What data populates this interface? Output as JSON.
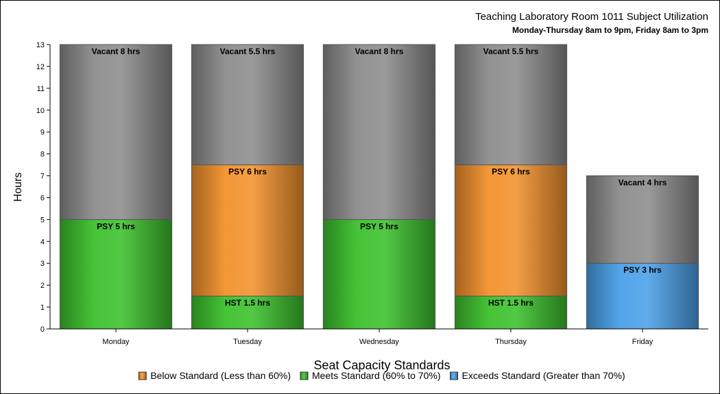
{
  "chart_data": {
    "type": "bar",
    "stacked": true,
    "title": "Teaching Laboratory Room 1011 Subject Utilization",
    "subtitle": "Monday-Thursday 8am to 9pm, Friday 8am to 3pm",
    "ylabel": "Hours",
    "xlabel": "",
    "ylim": [
      0,
      13
    ],
    "yticks": [
      0,
      1,
      2,
      3,
      4,
      5,
      6,
      7,
      8,
      9,
      10,
      11,
      12,
      13
    ],
    "categories": [
      "Monday",
      "Tuesday",
      "Wednesday",
      "Thursday",
      "Friday"
    ],
    "status_colors": {
      "below": "#f2912c",
      "meets": "#3cc02c",
      "exceeds": "#4aa0e8",
      "vacant": "#8c8c8c"
    },
    "bars": [
      {
        "category": "Monday",
        "segments": [
          {
            "label": "PSY 5 hrs",
            "value": 5,
            "status": "meets"
          },
          {
            "label": "Vacant 8 hrs",
            "value": 8,
            "status": "vacant"
          }
        ]
      },
      {
        "category": "Tuesday",
        "segments": [
          {
            "label": "HST 1.5 hrs",
            "value": 1.5,
            "status": "meets"
          },
          {
            "label": "PSY 6 hrs",
            "value": 6,
            "status": "below"
          },
          {
            "label": "Vacant 5.5 hrs",
            "value": 5.5,
            "status": "vacant"
          }
        ]
      },
      {
        "category": "Wednesday",
        "segments": [
          {
            "label": "PSY 5 hrs",
            "value": 5,
            "status": "meets"
          },
          {
            "label": "Vacant 8 hrs",
            "value": 8,
            "status": "vacant"
          }
        ]
      },
      {
        "category": "Thursday",
        "segments": [
          {
            "label": "HST 1.5 hrs",
            "value": 1.5,
            "status": "meets"
          },
          {
            "label": "PSY 6 hrs",
            "value": 6,
            "status": "below"
          },
          {
            "label": "Vacant 5.5 hrs",
            "value": 5.5,
            "status": "vacant"
          }
        ]
      },
      {
        "category": "Friday",
        "segments": [
          {
            "label": "PSY 3 hrs",
            "value": 3,
            "status": "exceeds"
          },
          {
            "label": "Vacant 4 hrs",
            "value": 4,
            "status": "vacant"
          }
        ]
      }
    ],
    "legend": {
      "title": "Seat Capacity Standards",
      "placement": "bottom",
      "entries": [
        {
          "label": "Below Standard (Less than 60%)",
          "status": "below"
        },
        {
          "label": "Meets Standard (60% to 70%)",
          "status": "meets"
        },
        {
          "label": "Exceeds Standard (Greater than 70%)",
          "status": "exceeds"
        }
      ]
    }
  }
}
